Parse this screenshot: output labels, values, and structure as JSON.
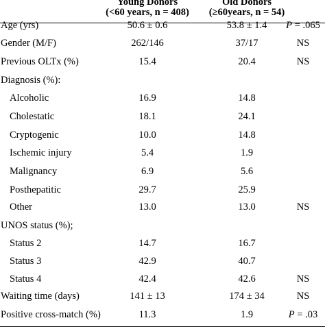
{
  "header": {
    "young_line1": "Young Donors",
    "young_line2": "(<60 years, n = 408)",
    "old_line1": "Old Donors",
    "old_line2": "(≥60years, n = 54)"
  },
  "rows": [
    {
      "label": "Age (yrs)",
      "young": "50.6 ± 0.6",
      "old": "53.8 ± 1.4",
      "p_prefix": "P",
      "p": " = .065"
    },
    {
      "label": "Gender (M/F)",
      "young": "262/146",
      "old": "37/17",
      "p_prefix": "",
      "p": "NS"
    },
    {
      "label": "Previous OLTx (%)",
      "young": "15.4",
      "old": "20.4",
      "p_prefix": "",
      "p": "NS"
    },
    {
      "label": "Diagnosis (%):",
      "young": "",
      "old": "",
      "p_prefix": "",
      "p": ""
    },
    {
      "label": "Alcoholic",
      "young": "16.9",
      "old": "14.8",
      "p_prefix": "",
      "p": ""
    },
    {
      "label": "Cholestatic",
      "young": "18.1",
      "old": "24.1",
      "p_prefix": "",
      "p": ""
    },
    {
      "label": "Cryptogenic",
      "young": "10.0",
      "old": "14.8",
      "p_prefix": "",
      "p": ""
    },
    {
      "label": "Ischemic injury",
      "young": "5.4",
      "old": "1.9",
      "p_prefix": "",
      "p": ""
    },
    {
      "label": "Malignancy",
      "young": "6.9",
      "old": "5.6",
      "p_prefix": "",
      "p": ""
    },
    {
      "label": "Posthepatitic",
      "young": "29.7",
      "old": "25.9",
      "p_prefix": "",
      "p": ""
    },
    {
      "label": "Other",
      "young": "13.0",
      "old": "13.0",
      "p_prefix": "",
      "p": "NS"
    },
    {
      "label": "UNOS status (%);",
      "young": "",
      "old": "",
      "p_prefix": "",
      "p": ""
    },
    {
      "label": "Status 2",
      "young": "14.7",
      "old": "16.7",
      "p_prefix": "",
      "p": ""
    },
    {
      "label": "Status 3",
      "young": "42.9",
      "old": "40.7",
      "p_prefix": "",
      "p": ""
    },
    {
      "label": "Status 4",
      "young": "42.4",
      "old": "42.6",
      "p_prefix": "",
      "p": "NS"
    },
    {
      "label": "Waiting time (days)",
      "young": "141 ± 13",
      "old": "174 ± 34",
      "p_prefix": "",
      "p": "NS"
    },
    {
      "label": "Positive cross-match (%)",
      "young": "11.3",
      "old": "1.9",
      "p_prefix": "P",
      "p": " = .03"
    }
  ]
}
